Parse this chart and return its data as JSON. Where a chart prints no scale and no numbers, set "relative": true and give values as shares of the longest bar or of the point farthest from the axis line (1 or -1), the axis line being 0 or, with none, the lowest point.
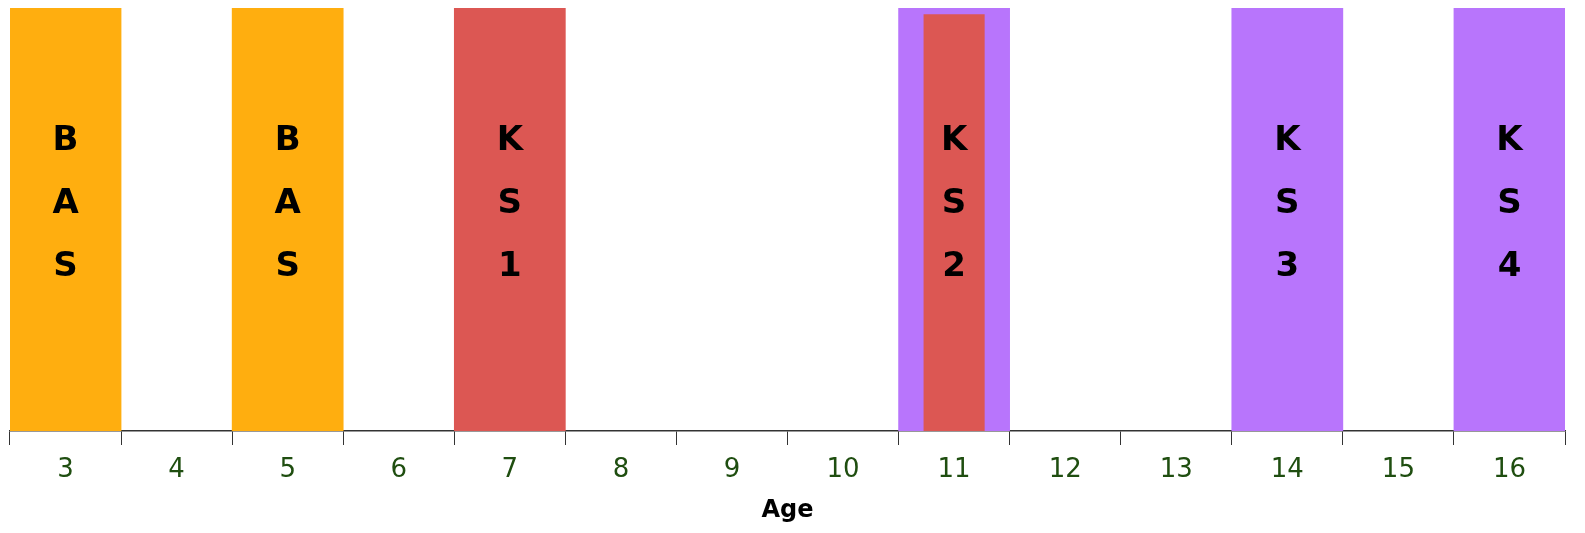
{
  "chart_data": {
    "type": "bar",
    "xlabel": "Age",
    "relative": true,
    "legend": false,
    "grid": false,
    "categories": [
      "3",
      "4",
      "5",
      "6",
      "7",
      "8",
      "9",
      "10",
      "11",
      "12",
      "13",
      "14",
      "15",
      "16"
    ],
    "series": [
      {
        "colors": [
          "#ffae0f",
          null,
          "#ffae0f",
          null,
          "#dc5753",
          null,
          null,
          null,
          "#b875fc",
          null,
          null,
          "#b875fc",
          null,
          "#b875fc"
        ],
        "values": [
          1,
          null,
          1,
          null,
          1,
          null,
          null,
          null,
          1,
          null,
          null,
          1,
          null,
          1
        ]
      },
      {
        "color": "#dc5753",
        "values": [
          null,
          null,
          null,
          null,
          null,
          null,
          null,
          null,
          0.985,
          null,
          null,
          null,
          null,
          null
        ]
      }
    ],
    "annotations": [
      "BAS",
      "BAS",
      "KS1",
      "KS2",
      "KS3",
      "KS4"
    ]
  }
}
